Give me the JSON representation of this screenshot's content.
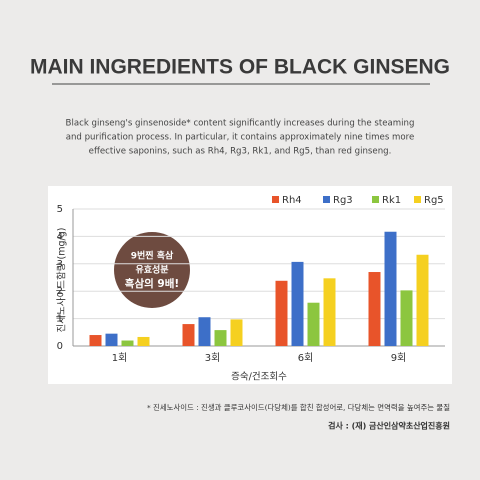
{
  "chart_data": {
    "type": "bar",
    "title": "MAIN INGREDIENTS OF BLACK GINSENG",
    "subtitle": [
      "Black ginseng's ginsenoside* content significantly increases during the steaming",
      "and purification process. In particular, it contains approximately nine times more",
      "effective saponins, such as Rh4, Rg3, Rk1, and Rg5, than red ginseng."
    ],
    "y_label": "진세노사이드함량 (mg/g)",
    "x_label": "증숙/건조회수",
    "categories": [
      "1회",
      "3회",
      "6회",
      "9회"
    ],
    "series": [
      {
        "name": "Rh4",
        "color": "#e8542a",
        "values": [
          0.4,
          0.8,
          2.38,
          2.7
        ]
      },
      {
        "name": "Rg3",
        "color": "#3d6fc8",
        "values": [
          0.45,
          1.05,
          3.07,
          4.17
        ]
      },
      {
        "name": "Rk1",
        "color": "#8cc63f",
        "values": [
          0.2,
          0.58,
          1.58,
          2.03
        ]
      },
      {
        "name": "Rg5",
        "color": "#f5d020",
        "values": [
          0.33,
          0.97,
          2.47,
          3.33
        ]
      }
    ],
    "ylim": [
      0,
      5
    ],
    "yticks": [
      0,
      1,
      2,
      3,
      4,
      5
    ],
    "grid": true,
    "legend": "top-right",
    "annotations": [
      "9번찐 흑삼",
      "유효성분",
      "흑삼의 9배!"
    ],
    "footnote": "* 진세노사이드 : 진생과 클루코사이드(다당체)를 합친 합성어로, 다당체는 면역력을 높여주는 물질",
    "source": "검사 : (재) 금산인삼약초산업진흥원"
  }
}
